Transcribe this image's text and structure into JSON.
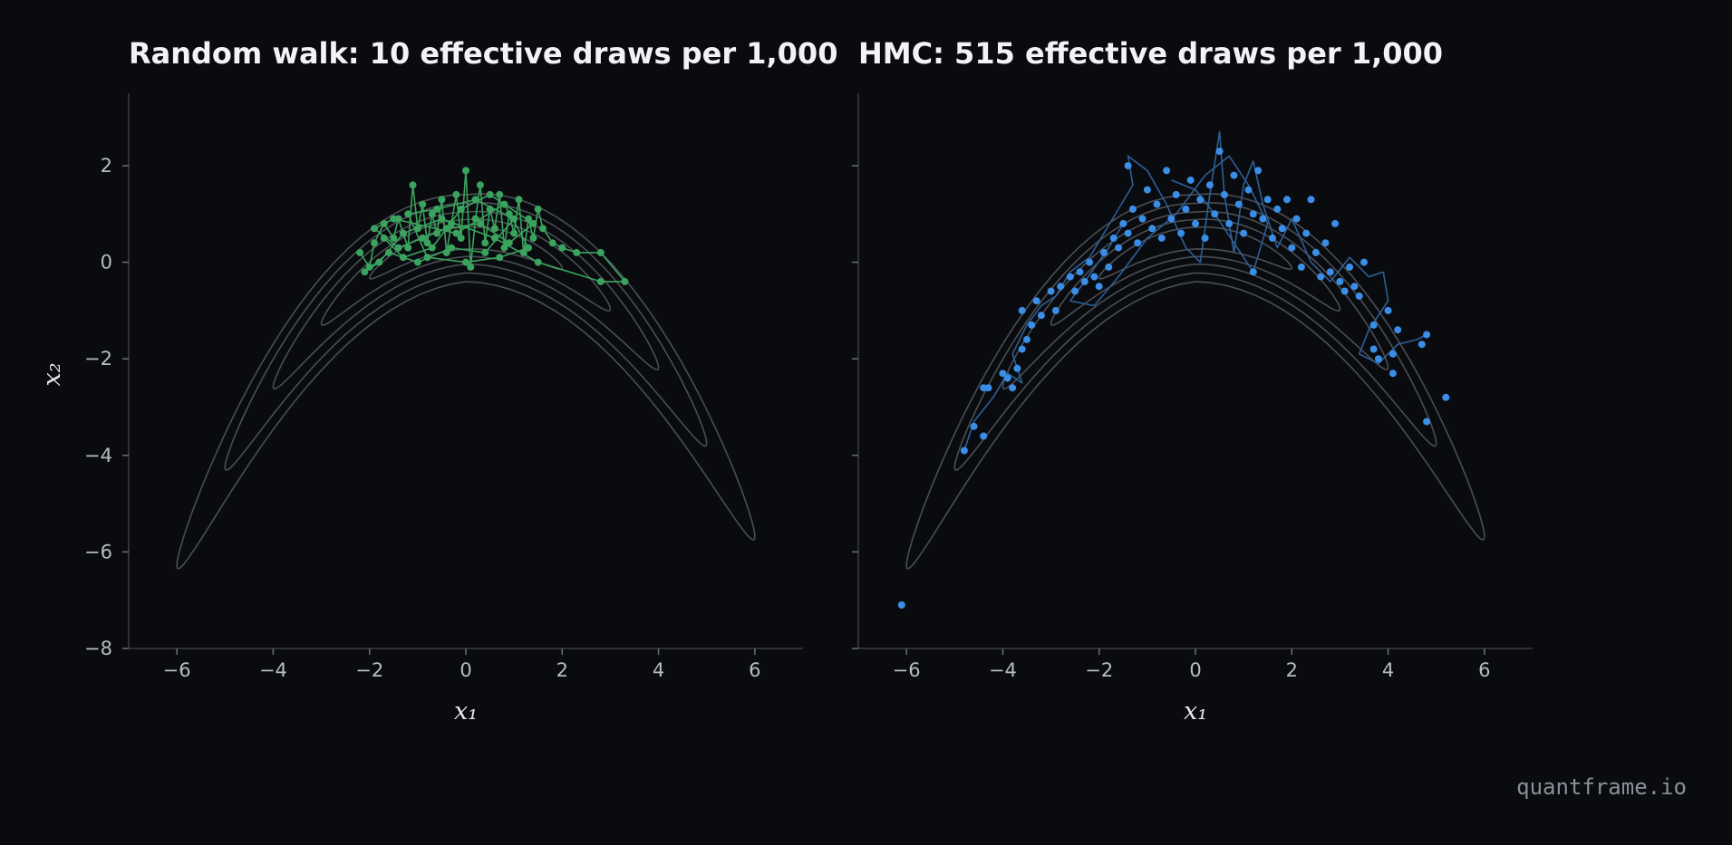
{
  "watermark": "quantframe.io",
  "chart_data": [
    {
      "type": "scatter",
      "title": "Random walk: 10 effective draws per 1,000",
      "xlabel": "x₁",
      "ylabel": "x₂",
      "xlim": [
        -7,
        7
      ],
      "ylim": [
        -8,
        3.5
      ],
      "xticks": [
        -6,
        -4,
        -2,
        0,
        2,
        4,
        6
      ],
      "yticks": [
        -8,
        -6,
        -4,
        -2,
        0,
        2
      ],
      "xtick_labels": [
        "−6",
        "−4",
        "−2",
        "0",
        "2",
        "4",
        "6"
      ],
      "ytick_labels": [
        "−8",
        "−6",
        "−4",
        "−2",
        "0",
        "2"
      ],
      "grid": false,
      "background_contours": "banana-shaped density (x₂ ≈ 0.5 − 0.15·x₁²)",
      "contour_color": "#4a4e55",
      "series": [
        {
          "color": "#3aa35e",
          "connected": true,
          "points": [
            [
              -2.2,
              0.2
            ],
            [
              -2.0,
              -0.1
            ],
            [
              -1.9,
              0.4
            ],
            [
              -1.7,
              0.8
            ],
            [
              -1.5,
              0.5
            ],
            [
              -1.4,
              0.9
            ],
            [
              -1.2,
              0.3
            ],
            [
              -1.1,
              1.6
            ],
            [
              -1.0,
              0.7
            ],
            [
              -0.9,
              1.2
            ],
            [
              -0.8,
              0.4
            ],
            [
              -0.7,
              1.0
            ],
            [
              -0.6,
              0.6
            ],
            [
              -0.5,
              1.3
            ],
            [
              -0.4,
              0.2
            ],
            [
              -0.3,
              0.8
            ],
            [
              -0.2,
              1.4
            ],
            [
              -0.1,
              0.5
            ],
            [
              0.0,
              1.9
            ],
            [
              0.1,
              -0.1
            ],
            [
              0.2,
              0.9
            ],
            [
              0.3,
              1.6
            ],
            [
              0.4,
              0.4
            ],
            [
              0.5,
              1.1
            ],
            [
              0.6,
              0.7
            ],
            [
              0.7,
              1.4
            ],
            [
              0.8,
              0.3
            ],
            [
              0.9,
              1.0
            ],
            [
              1.0,
              0.6
            ],
            [
              1.1,
              1.3
            ],
            [
              1.2,
              0.2
            ],
            [
              1.3,
              0.9
            ],
            [
              1.4,
              0.5
            ],
            [
              1.5,
              1.1
            ],
            [
              1.6,
              0.7
            ],
            [
              1.8,
              0.4
            ],
            [
              2.0,
              0.3
            ],
            [
              2.3,
              0.2
            ],
            [
              2.8,
              0.2
            ],
            [
              3.3,
              -0.4
            ],
            [
              2.8,
              -0.4
            ],
            [
              1.5,
              0.0
            ],
            [
              0.6,
              0.5
            ],
            [
              -0.5,
              0.9
            ],
            [
              -1.3,
              0.6
            ],
            [
              -1.8,
              0.0
            ],
            [
              -2.1,
              -0.2
            ],
            [
              -1.6,
              0.2
            ],
            [
              -1.0,
              0.0
            ],
            [
              -0.3,
              0.3
            ],
            [
              0.4,
              0.2
            ],
            [
              1.0,
              0.9
            ],
            [
              0.2,
              1.3
            ],
            [
              -0.6,
              1.1
            ],
            [
              -1.2,
              1.0
            ],
            [
              -0.8,
              0.1
            ],
            [
              0.0,
              0.0
            ],
            [
              0.7,
              0.1
            ],
            [
              1.3,
              0.3
            ],
            [
              0.8,
              1.2
            ],
            [
              -0.2,
              0.6
            ],
            [
              -1.5,
              0.9
            ],
            [
              -1.9,
              0.7
            ],
            [
              -1.4,
              0.3
            ],
            [
              -0.9,
              0.5
            ],
            [
              -0.4,
              0.7
            ],
            [
              0.3,
              0.8
            ],
            [
              0.9,
              0.4
            ],
            [
              1.4,
              0.8
            ],
            [
              0.5,
              1.4
            ],
            [
              -0.1,
              1.1
            ],
            [
              -0.7,
              0.3
            ],
            [
              -1.3,
              0.1
            ],
            [
              -1.7,
              0.5
            ]
          ]
        }
      ]
    },
    {
      "type": "scatter",
      "title": "HMC: 515 effective draws per 1,000",
      "xlabel": "x₁",
      "ylabel": "",
      "xlim": [
        -7,
        7
      ],
      "ylim": [
        -8,
        3.5
      ],
      "xticks": [
        -6,
        -4,
        -2,
        0,
        2,
        4,
        6
      ],
      "yticks": [
        -8,
        -6,
        -4,
        -2,
        0,
        2
      ],
      "xtick_labels": [
        "−6",
        "−4",
        "−2",
        "0",
        "2",
        "4",
        "6"
      ],
      "grid": false,
      "background_contours": "banana-shaped density (x₂ ≈ 0.5 − 0.15·x₁²)",
      "contour_color": "#4a4e55",
      "series": [
        {
          "color": "#3b8ee8",
          "connected": false,
          "trajectory_color": "#2d5f96",
          "points": [
            [
              -6.1,
              -7.1
            ],
            [
              -4.8,
              -3.9
            ],
            [
              -4.6,
              -3.4
            ],
            [
              -4.4,
              -3.6
            ],
            [
              -4.4,
              -2.6
            ],
            [
              -4.3,
              -2.6
            ],
            [
              -4.0,
              -2.3
            ],
            [
              -3.9,
              -2.4
            ],
            [
              -3.8,
              -2.6
            ],
            [
              -3.7,
              -2.2
            ],
            [
              -3.6,
              -1.8
            ],
            [
              -3.5,
              -1.6
            ],
            [
              -3.6,
              -1.0
            ],
            [
              -3.4,
              -1.3
            ],
            [
              -3.3,
              -0.8
            ],
            [
              -3.2,
              -1.1
            ],
            [
              -3.0,
              -0.6
            ],
            [
              -2.9,
              -1.0
            ],
            [
              -2.8,
              -0.5
            ],
            [
              -2.6,
              -0.3
            ],
            [
              -2.5,
              -0.6
            ],
            [
              -2.4,
              -0.2
            ],
            [
              -2.3,
              -0.4
            ],
            [
              -2.2,
              0.0
            ],
            [
              -2.1,
              -0.3
            ],
            [
              -2.0,
              -0.5
            ],
            [
              -1.9,
              0.2
            ],
            [
              -1.8,
              -0.1
            ],
            [
              -1.7,
              0.5
            ],
            [
              -1.6,
              0.3
            ],
            [
              -1.5,
              0.8
            ],
            [
              -1.4,
              0.6
            ],
            [
              -1.4,
              2.0
            ],
            [
              -1.3,
              1.1
            ],
            [
              -1.2,
              0.4
            ],
            [
              -1.1,
              0.9
            ],
            [
              -1.0,
              1.5
            ],
            [
              -0.9,
              0.7
            ],
            [
              -0.8,
              1.2
            ],
            [
              -0.7,
              0.5
            ],
            [
              -0.6,
              1.9
            ],
            [
              -0.5,
              0.9
            ],
            [
              -0.4,
              1.4
            ],
            [
              -0.3,
              0.6
            ],
            [
              -0.2,
              1.1
            ],
            [
              -0.1,
              1.7
            ],
            [
              0.0,
              0.8
            ],
            [
              0.1,
              1.3
            ],
            [
              0.2,
              0.5
            ],
            [
              0.3,
              1.6
            ],
            [
              0.4,
              1.0
            ],
            [
              0.5,
              2.3
            ],
            [
              0.6,
              1.4
            ],
            [
              0.7,
              0.8
            ],
            [
              0.8,
              1.8
            ],
            [
              0.9,
              1.2
            ],
            [
              1.0,
              0.6
            ],
            [
              1.1,
              1.5
            ],
            [
              1.2,
              1.0
            ],
            [
              1.2,
              -0.2
            ],
            [
              1.3,
              1.9
            ],
            [
              1.4,
              0.9
            ],
            [
              1.5,
              1.3
            ],
            [
              1.6,
              0.5
            ],
            [
              1.7,
              1.1
            ],
            [
              1.8,
              0.7
            ],
            [
              1.9,
              1.3
            ],
            [
              2.0,
              0.3
            ],
            [
              2.1,
              0.9
            ],
            [
              2.2,
              -0.1
            ],
            [
              2.3,
              0.6
            ],
            [
              2.4,
              1.3
            ],
            [
              2.5,
              0.2
            ],
            [
              2.6,
              -0.3
            ],
            [
              2.7,
              0.4
            ],
            [
              2.8,
              -0.2
            ],
            [
              2.9,
              0.8
            ],
            [
              3.0,
              -0.4
            ],
            [
              3.1,
              -0.6
            ],
            [
              3.2,
              -0.1
            ],
            [
              3.3,
              -0.5
            ],
            [
              3.4,
              -0.7
            ],
            [
              3.5,
              0.0
            ],
            [
              3.7,
              -1.3
            ],
            [
              3.7,
              -1.8
            ],
            [
              3.8,
              -2.0
            ],
            [
              4.0,
              -1.0
            ],
            [
              4.1,
              -1.9
            ],
            [
              4.1,
              -2.3
            ],
            [
              4.2,
              -1.4
            ],
            [
              4.7,
              -1.7
            ],
            [
              4.8,
              -3.3
            ],
            [
              4.8,
              -1.5
            ],
            [
              5.2,
              -2.8
            ]
          ],
          "trajectories": [
            [
              [
                -4.8,
                -3.9
              ],
              [
                -4.6,
                -3.3
              ],
              [
                -4.2,
                -2.8
              ],
              [
                -3.9,
                -2.3
              ],
              [
                -3.6,
                -2.5
              ],
              [
                -3.8,
                -1.9
              ],
              [
                -3.5,
                -1.3
              ],
              [
                -3.2,
                -0.9
              ],
              [
                -2.9,
                -0.7
              ]
            ],
            [
              [
                -2.9,
                -0.7
              ],
              [
                -2.6,
                -0.2
              ],
              [
                -2.2,
                0.1
              ],
              [
                -1.9,
                0.6
              ],
              [
                -1.6,
                1.1
              ],
              [
                -1.3,
                1.6
              ],
              [
                -1.4,
                2.2
              ],
              [
                -1.0,
                1.9
              ],
              [
                -0.6,
                1.2
              ]
            ],
            [
              [
                -0.6,
                1.2
              ],
              [
                -0.2,
                0.3
              ],
              [
                0.1,
                0.0
              ],
              [
                0.3,
                1.4
              ],
              [
                0.5,
                2.7
              ],
              [
                0.6,
                1.4
              ],
              [
                0.8,
                0.2
              ],
              [
                1.0,
                1.6
              ],
              [
                1.2,
                2.1
              ]
            ],
            [
              [
                1.2,
                2.1
              ],
              [
                1.4,
                1.2
              ],
              [
                1.7,
                0.3
              ],
              [
                2.0,
                0.9
              ],
              [
                2.4,
                0.0
              ],
              [
                2.8,
                -0.4
              ],
              [
                3.2,
                0.1
              ],
              [
                3.6,
                -0.3
              ],
              [
                3.9,
                -0.2
              ]
            ],
            [
              [
                3.9,
                -0.2
              ],
              [
                4.0,
                -0.8
              ],
              [
                3.6,
                -1.4
              ],
              [
                3.4,
                -1.9
              ],
              [
                3.8,
                -2.1
              ],
              [
                4.2,
                -1.7
              ],
              [
                4.6,
                -1.6
              ],
              [
                4.8,
                -1.5
              ]
            ],
            [
              [
                -1.5,
                0.8
              ],
              [
                -1.8,
                0.3
              ],
              [
                -2.3,
                -0.4
              ],
              [
                -2.6,
                -0.8
              ],
              [
                -2.1,
                -0.9
              ],
              [
                -1.6,
                -0.3
              ],
              [
                -1.0,
                0.5
              ],
              [
                -0.4,
                1.0
              ],
              [
                0.2,
                1.8
              ]
            ],
            [
              [
                0.2,
                1.8
              ],
              [
                0.7,
                2.2
              ],
              [
                1.1,
                1.6
              ],
              [
                1.5,
                0.8
              ],
              [
                1.2,
                -0.2
              ],
              [
                0.8,
                0.4
              ],
              [
                0.4,
                1.0
              ],
              [
                0.0,
                1.5
              ],
              [
                -0.5,
                1.7
              ]
            ]
          ]
        }
      ]
    }
  ]
}
